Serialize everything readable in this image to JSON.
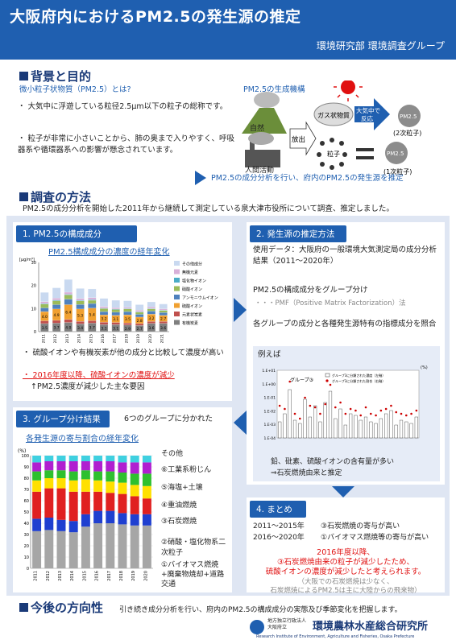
{
  "header": {
    "title": "大阪府内におけるPM2.5の発生源の推定",
    "subtitle": "環境研究部 環境調査グループ"
  },
  "background": {
    "heading": "背景と目的",
    "question": "微小粒子状物質（PM2.5）とは?",
    "bullets": [
      "大気中に浮遊している粒径2.5μm以下の粒子の総称です。",
      "粒子が非常に小さいことから、肺の奥まで入りやすく、呼吸器系や循環器系への影響が懸念されています。"
    ],
    "mechanism_title": "PM2.5の生成機構",
    "labels": {
      "nature": "自然",
      "human": "人間活動",
      "gas": "ガス状物質",
      "emit": "放出",
      "react": "大気中で反応",
      "pm": "PM2.5",
      "secondary": "(2次粒子)",
      "primary": "(1次粒子)",
      "particle": "粒子"
    },
    "conclusion": "PM2.5の成分分析を行い、府内のPM2.5の発生源を推定"
  },
  "method": {
    "heading": "調査の方法",
    "text": "PM2.5の成分分析を開始した2011年から継続して測定している泉大津市役所について調査、推定しました。"
  },
  "s1": {
    "title": "1. PM2.5の構成成分",
    "chart_title": "PM2.5構成成分の濃度の経年変化",
    "y_unit": "[μg/m³]",
    "bullets": [
      "硫酸イオンや有機炭素が他の成分と比較して濃度が高い",
      "2016年度以降、硫酸イオンの濃度が減少",
      "↑PM2.5濃度が減少した主な要因"
    ]
  },
  "s2": {
    "title": "2. 発生源の推定方法",
    "data_line": "使用データ：大阪府の一般環境大気測定局の成分分析結果（2011〜2020年）",
    "step1": "PM2.5の構成成分をグループ分け",
    "pmf": "・・・PMF（Positive Matrix Factorization）法",
    "step2": "各グループの成分と各種発生源特有の指標成分を照合",
    "example": "例えば",
    "group_label": "グループ③",
    "legend": [
      "グループ3に分類された濃度（左軸）",
      "グループ3に分類された割合（右軸）"
    ],
    "note1": "鉛、砒素、硫酸イオンの含有量が多い",
    "note2": "⇒石炭燃焼由来と推定",
    "y_left": [
      "1.E+01",
      "1.E+00",
      "1.E-01",
      "1.E-02",
      "1.E-03",
      "1.E-04"
    ],
    "y_right": "(%)"
  },
  "s3": {
    "title": "3. グループ分け結果",
    "note": "6つのグループに分かれた",
    "chart_title": "各発生源の寄与割合の経年変化",
    "legend": [
      "その他",
      "⑥工業系粉じん",
      "⑤海塩+土壌",
      "④重油燃焼",
      "③石炭燃焼",
      "②硝酸・塩化物系二次粒子",
      "①バイオマス燃焼+廃棄物焼却+道路交通"
    ],
    "y_unit": "(%)"
  },
  "s4": {
    "title": "4. まとめ",
    "row1a": "2011〜2015年",
    "row1b": "③石炭燃焼の寄与が高い",
    "row2a": "2016〜2020年",
    "row2b": "①バイオマス燃焼等の寄与が高い",
    "red1": "2016年度以降、",
    "red2": "③石炭燃焼由来の粒子が減少したため、",
    "red3": "硫酸イオンの濃度が減少したと考えられます。",
    "gray1": "（大阪での石炭燃焼は少なく、",
    "gray2": "石炭燃焼によるPM2.5は主に大陸からの飛来物）"
  },
  "future": {
    "heading": "今後の方向性",
    "text": "引き続き成分分析を行い、府内のPM2.5の構成成分の実態及び季節変化を把握します。"
  },
  "footer": {
    "org_small1": "地方独立行政法人",
    "org_small2": "大阪府立",
    "org_name": "環境農林水産総合研究所",
    "org_en": "Research Institute of Environment, Agriculture and Fisheries, Osaka Prefecture"
  },
  "chart_data": [
    {
      "type": "bar",
      "title": "PM2.5構成成分の濃度の経年変化",
      "ylabel": "[μg/m³]",
      "ylim": [
        0,
        30
      ],
      "categories": [
        "2011",
        "2012",
        "2013",
        "2014",
        "2015",
        "2016",
        "2017",
        "2018",
        "2019",
        "2020",
        "2021"
      ],
      "series": [
        {
          "name": "有機炭素",
          "values": [
            3.5,
            3.7,
            4.0,
            3.4,
            3.7,
            3.1,
            3.1,
            2.9,
            2.7,
            3.6,
            3.6
          ],
          "color": "#7f7f7f"
        },
        {
          "name": "元素状炭素",
          "values": [
            1.2,
            1.2,
            1.3,
            1.1,
            1.1,
            1.0,
            0.9,
            0.9,
            0.8,
            0.8,
            0.8
          ],
          "color": "#c0504d"
        },
        {
          "name": "硫酸イオン",
          "values": [
            4.0,
            4.9,
            6.4,
            5.3,
            5.4,
            3.2,
            3.1,
            3.5,
            2.8,
            3.2,
            2.7
          ],
          "color": "#f0a030"
        },
        {
          "name": "アンモニウムイオン",
          "values": [
            1.6,
            1.9,
            2.4,
            2.0,
            2.0,
            1.4,
            1.3,
            1.4,
            1.2,
            1.3,
            1.2
          ],
          "color": "#4f81bd"
        },
        {
          "name": "硝酸イオン",
          "values": [
            1.6,
            1.7,
            1.8,
            1.5,
            1.4,
            1.3,
            1.2,
            1.1,
            1.0,
            1.0,
            0.9
          ],
          "color": "#9bbb59"
        },
        {
          "name": "塩化物イオン",
          "values": [
            0.3,
            0.3,
            0.3,
            0.3,
            0.3,
            0.2,
            0.2,
            0.2,
            0.2,
            0.2,
            0.2
          ],
          "color": "#4bacc6"
        },
        {
          "name": "無機元素",
          "values": [
            0.8,
            0.8,
            0.9,
            0.8,
            0.8,
            0.7,
            0.6,
            0.6,
            0.6,
            0.6,
            0.5
          ],
          "color": "#d8b0d8"
        },
        {
          "name": "その他成分",
          "values": [
            4.0,
            4.5,
            5.5,
            4.3,
            3.8,
            3.5,
            3.2,
            2.8,
            2.4,
            2.2,
            2.1
          ],
          "color": "#c9d9f0"
        }
      ]
    },
    {
      "type": "bar",
      "title": "各発生源の寄与割合の経年変化",
      "ylabel": "(%)",
      "ylim": [
        0,
        100
      ],
      "categories": [
        "2011",
        "2012",
        "2013",
        "2014",
        "2015",
        "2016",
        "2017",
        "2018",
        "2019",
        "2020"
      ],
      "series": [
        {
          "name": "①バイオマス燃焼+廃棄物焼却+道路交通",
          "values": [
            33,
            34,
            33,
            32,
            37,
            40,
            40,
            39,
            38,
            38
          ],
          "color": "#a6a6a6"
        },
        {
          "name": "②硝酸・塩化物系二次粒子",
          "values": [
            11,
            11,
            10,
            10,
            11,
            11,
            11,
            10,
            10,
            10
          ],
          "color": "#1f3fd0"
        },
        {
          "name": "③石炭燃焼",
          "values": [
            24,
            26,
            28,
            26,
            20,
            17,
            16,
            17,
            16,
            14
          ],
          "color": "#e02020"
        },
        {
          "name": "④重油燃焼",
          "values": [
            10,
            9,
            9,
            10,
            11,
            10,
            10,
            10,
            10,
            11
          ],
          "color": "#ffe000"
        },
        {
          "name": "⑤海塩+土壌",
          "values": [
            8,
            7,
            7,
            8,
            8,
            8,
            9,
            9,
            10,
            11
          ],
          "color": "#2ec02e"
        },
        {
          "name": "⑥工業系粉じん",
          "values": [
            8,
            8,
            8,
            9,
            8,
            9,
            9,
            9,
            10,
            10
          ],
          "color": "#b01fd0"
        },
        {
          "name": "その他",
          "values": [
            6,
            5,
            5,
            5,
            5,
            5,
            5,
            6,
            6,
            6
          ],
          "color": "#3fd0e0"
        }
      ]
    }
  ]
}
